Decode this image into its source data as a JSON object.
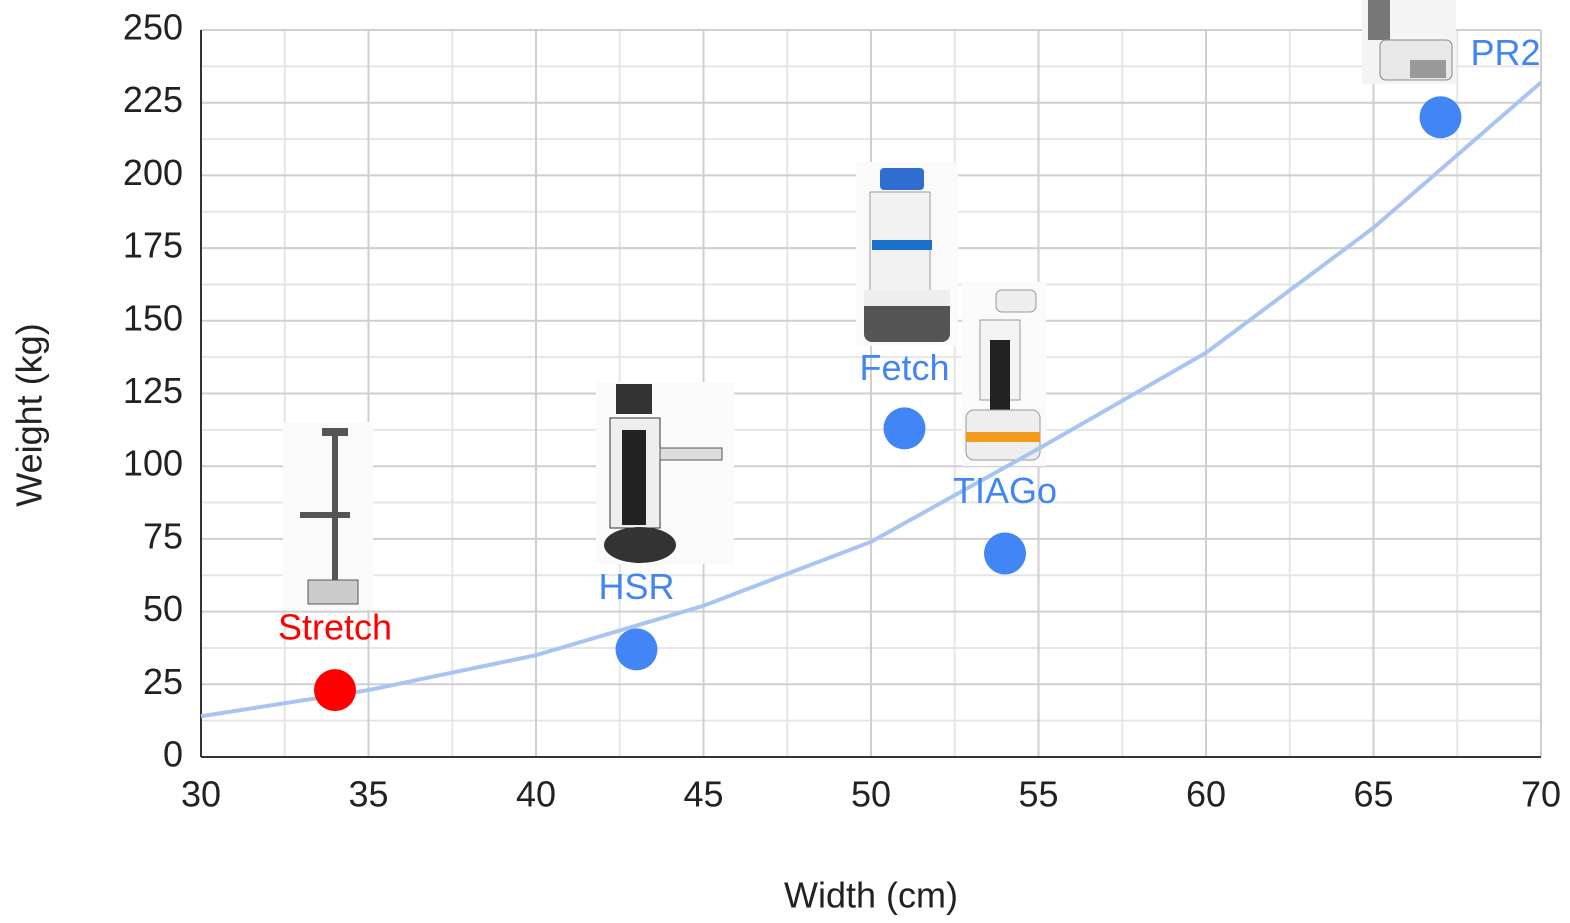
{
  "chart_data": {
    "type": "scatter",
    "x": [
      34,
      43,
      51,
      54,
      67
    ],
    "values": [
      23,
      37,
      113,
      70,
      220
    ],
    "point_labels": [
      "Stretch",
      "HSR",
      "Fetch",
      "TIAGo",
      "PR2"
    ],
    "point_colors": [
      "#ff0000",
      "#4285f4",
      "#4285f4",
      "#4285f4",
      "#4285f4"
    ],
    "trendline": {
      "color": "#a8c4f0",
      "x": [
        30,
        35,
        40,
        45,
        50,
        55,
        60,
        65,
        70
      ],
      "values": [
        14,
        23,
        35,
        52,
        74,
        106,
        139,
        182,
        232
      ]
    },
    "xlabel": "Width (cm)",
    "ylabel": "Weight (kg)",
    "xlim": [
      30,
      70
    ],
    "ylim": [
      0,
      250
    ],
    "xticks": [
      30,
      35,
      40,
      45,
      50,
      55,
      60,
      65,
      70
    ],
    "yticks": [
      0,
      25,
      50,
      75,
      100,
      125,
      150,
      175,
      200,
      225,
      250
    ],
    "x_minor_ticks": [
      32.5,
      37.5,
      42.5,
      47.5,
      52.5,
      57.5,
      62.5,
      67.5
    ],
    "y_minor_ticks": [
      12.5,
      37.5,
      62.5,
      87.5,
      112.5,
      137.5,
      162.5,
      187.5,
      212.5,
      237.5
    ],
    "grid": true
  }
}
